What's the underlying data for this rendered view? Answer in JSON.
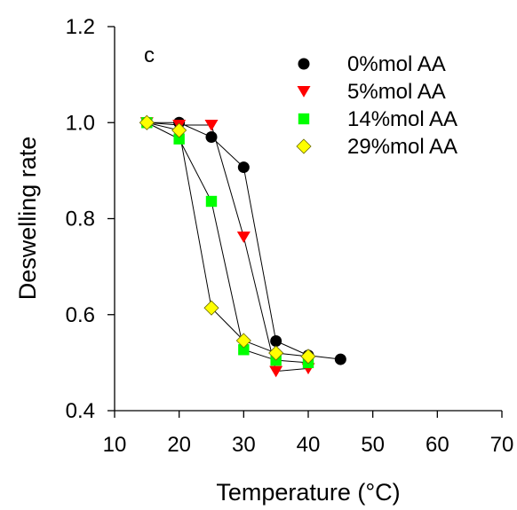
{
  "chart_data": {
    "type": "line",
    "panel_label": "c",
    "xlabel": "Temperature (°C)",
    "ylabel": "Deswelling rate",
    "xlim": [
      10,
      70
    ],
    "ylim": [
      0.4,
      1.2
    ],
    "xticks": [
      "10",
      "20",
      "30",
      "40",
      "50",
      "60",
      "70"
    ],
    "yticks": [
      "0.4",
      "0.6",
      "0.8",
      "1.0",
      "1.2"
    ],
    "grid": false,
    "legend_position": "top-right",
    "series": [
      {
        "name": "0%mol AA",
        "marker": "circle",
        "color": "#000000",
        "points": [
          [
            15,
            1.0
          ],
          [
            20,
            1.0
          ],
          [
            25,
            0.97
          ],
          [
            30,
            0.907
          ],
          [
            35,
            0.545
          ],
          [
            40,
            0.515
          ],
          [
            45,
            0.507
          ]
        ]
      },
      {
        "name": "5%mol AA",
        "marker": "triangle-down",
        "color": "#ff0000",
        "points": [
          [
            15,
            1.0
          ],
          [
            20,
            0.995
          ],
          [
            25,
            0.995
          ],
          [
            30,
            0.762
          ],
          [
            35,
            0.482
          ],
          [
            40,
            0.488
          ]
        ]
      },
      {
        "name": "14%mol AA",
        "marker": "square",
        "color": "#00ff00",
        "points": [
          [
            15,
            1.0
          ],
          [
            20,
            0.966
          ],
          [
            25,
            0.836
          ],
          [
            30,
            0.527
          ],
          [
            35,
            0.505
          ],
          [
            40,
            0.5
          ]
        ]
      },
      {
        "name": "29%mol AA",
        "marker": "diamond",
        "color": "#ffff00",
        "points": [
          [
            15,
            1.0
          ],
          [
            20,
            0.984
          ],
          [
            25,
            0.614
          ],
          [
            30,
            0.546
          ],
          [
            35,
            0.52
          ],
          [
            40,
            0.513
          ]
        ]
      }
    ]
  }
}
